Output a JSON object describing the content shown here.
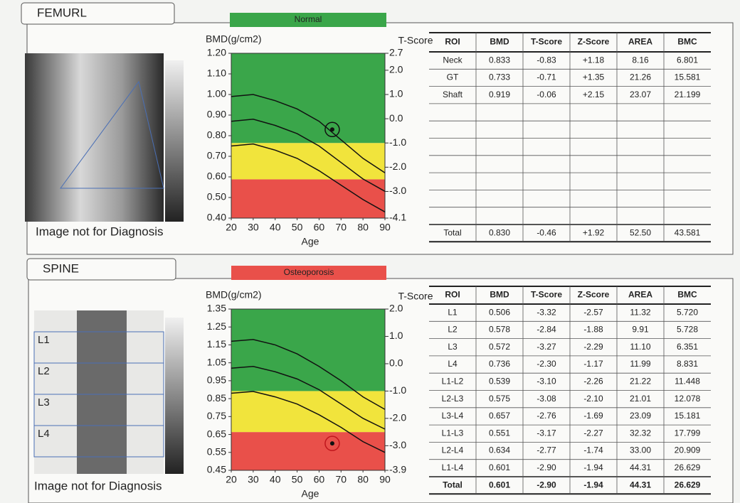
{
  "femur": {
    "title": "FEMURL",
    "status": "Normal",
    "status_color": "#3aa64a",
    "image_note": "Image not for Diagnosis",
    "chart": {
      "type": "line",
      "y_label": "BMD(g/cm2)",
      "y2_label": "T-Score",
      "x_label": "Age",
      "xlim": [
        20,
        90
      ],
      "xticks": [
        20,
        30,
        40,
        50,
        60,
        70,
        80,
        90
      ],
      "ylim": [
        0.4,
        1.2
      ],
      "yticks": [
        {
          "value": 0.4,
          "label": "0.40"
        },
        {
          "value": 0.5,
          "label": "0.50"
        },
        {
          "value": 0.6,
          "label": "0.60"
        },
        {
          "value": 0.7,
          "label": "0.70"
        },
        {
          "value": 0.8,
          "label": "0.80"
        },
        {
          "value": 0.9,
          "label": "0.90"
        },
        {
          "value": 1.0,
          "label": "1.00"
        },
        {
          "value": 1.1,
          "label": "1.10"
        },
        {
          "value": 1.2,
          "label": "1.20"
        }
      ],
      "y2lim": [
        -4.1,
        2.7
      ],
      "y2ticks": [
        -4.1,
        {
          "value": -3,
          "label": "-3.0"
        },
        {
          "value": -2,
          "label": "-2.0"
        },
        {
          "value": -1,
          "label": "-1.0"
        },
        {
          "value": 0,
          "label": "0.0"
        },
        {
          "value": 1,
          "label": "1.0"
        },
        {
          "value": 2,
          "label": "2.0"
        },
        2.7
      ],
      "bands": [
        {
          "from": -4.1,
          "to": -2.5,
          "color": "#e9504a"
        },
        {
          "from": -2.5,
          "to": -1,
          "color": "#f1e43c"
        },
        {
          "from": -1,
          "to": 2.7,
          "color": "#3aa64a"
        }
      ],
      "x": [
        20,
        30,
        40,
        50,
        60,
        70,
        80,
        90
      ],
      "series": [
        {
          "color": "#111111",
          "values": [
            0.99,
            1.0,
            0.97,
            0.93,
            0.87,
            0.78,
            0.69,
            0.62
          ]
        },
        {
          "color": "#111111",
          "values": [
            0.87,
            0.88,
            0.85,
            0.81,
            0.75,
            0.67,
            0.59,
            0.53
          ]
        },
        {
          "color": "#111111",
          "values": [
            0.75,
            0.76,
            0.73,
            0.69,
            0.63,
            0.56,
            0.49,
            0.43
          ]
        }
      ],
      "patient": {
        "x": 66,
        "y": 0.83
      }
    },
    "table": {
      "header": [
        "ROI",
        "BMD",
        "T-Score",
        "Z-Score",
        "AREA",
        "BMC"
      ],
      "rows": [
        [
          "Neck",
          "0.833",
          "-0.83",
          "+1.18",
          "8.16",
          "6.801"
        ],
        [
          "GT",
          "0.733",
          "-0.71",
          "+1.35",
          "21.26",
          "15.581"
        ],
        [
          "Shaft",
          "0.919",
          "-0.06",
          "+2.15",
          "23.07",
          "21.199"
        ]
      ],
      "total": [
        "Total",
        "0.830",
        "-0.46",
        "+1.92",
        "52.50",
        "43.581"
      ]
    }
  },
  "spine": {
    "title": "SPINE",
    "status": "Osteoporosis",
    "status_color": "#e9504a",
    "image_note": "Image not for Diagnosis",
    "image_labels": [
      "L1",
      "L2",
      "L3",
      "L4"
    ],
    "chart": {
      "type": "line",
      "y_label": "BMD(g/cm2)",
      "y2_label": "T-Score",
      "x_label": "Age",
      "xlim": [
        20,
        90
      ],
      "xticks": [
        20,
        30,
        40,
        50,
        60,
        70,
        80,
        90
      ],
      "ylim": [
        0.45,
        1.35
      ],
      "yticks": [
        0.45,
        0.55,
        0.65,
        0.75,
        0.85,
        0.95,
        1.05,
        1.15,
        1.25,
        1.35
      ],
      "y2lim": [
        -3.9,
        2.0
      ],
      "y2ticks": [
        -3.9,
        {
          "value": -3,
          "label": "-3.0"
        },
        {
          "value": -2,
          "label": "-2.0"
        },
        {
          "value": -1,
          "label": "-1.0"
        },
        {
          "value": 0,
          "label": "0.0"
        },
        {
          "value": 1,
          "label": "1.0"
        },
        {
          "value": 2,
          "label": "2.0"
        }
      ],
      "bands": [
        {
          "from": -3.9,
          "to": -2.5,
          "color": "#e9504a"
        },
        {
          "from": -2.5,
          "to": -1,
          "color": "#f1e43c"
        },
        {
          "from": -1,
          "to": 2.0,
          "color": "#3aa64a"
        }
      ],
      "x": [
        20,
        30,
        40,
        50,
        60,
        70,
        80,
        90
      ],
      "series": [
        {
          "color": "#111111",
          "values": [
            1.17,
            1.18,
            1.15,
            1.1,
            1.03,
            0.95,
            0.86,
            0.79
          ]
        },
        {
          "color": "#111111",
          "values": [
            1.02,
            1.03,
            1.0,
            0.96,
            0.9,
            0.82,
            0.74,
            0.68
          ]
        },
        {
          "color": "#111111",
          "values": [
            0.88,
            0.89,
            0.86,
            0.82,
            0.76,
            0.69,
            0.61,
            0.55
          ]
        }
      ],
      "patient": {
        "x": 66,
        "y": 0.6
      }
    },
    "table": {
      "header": [
        "ROI",
        "BMD",
        "T-Score",
        "Z-Score",
        "AREA",
        "BMC"
      ],
      "rows": [
        [
          "L1",
          "0.506",
          "-3.32",
          "-2.57",
          "11.32",
          "5.720"
        ],
        [
          "L2",
          "0.578",
          "-2.84",
          "-1.88",
          "9.91",
          "5.728"
        ],
        [
          "L3",
          "0.572",
          "-3.27",
          "-2.29",
          "11.10",
          "6.351"
        ],
        [
          "L4",
          "0.736",
          "-2.30",
          "-1.17",
          "11.99",
          "8.831"
        ],
        [
          "L1-L2",
          "0.539",
          "-3.10",
          "-2.26",
          "21.22",
          "11.448"
        ],
        [
          "L2-L3",
          "0.575",
          "-3.08",
          "-2.10",
          "21.01",
          "12.078"
        ],
        [
          "L3-L4",
          "0.657",
          "-2.76",
          "-1.69",
          "23.09",
          "15.181"
        ],
        [
          "L1-L3",
          "0.551",
          "-3.17",
          "-2.27",
          "32.32",
          "17.799"
        ],
        [
          "L2-L4",
          "0.634",
          "-2.77",
          "-1.74",
          "33.00",
          "20.909"
        ],
        [
          "L1-L4",
          "0.601",
          "-2.90",
          "-1.94",
          "44.31",
          "26.629"
        ]
      ],
      "total": [
        "Total",
        "0.601",
        "-2.90",
        "-1.94",
        "44.31",
        "26.629"
      ]
    }
  }
}
